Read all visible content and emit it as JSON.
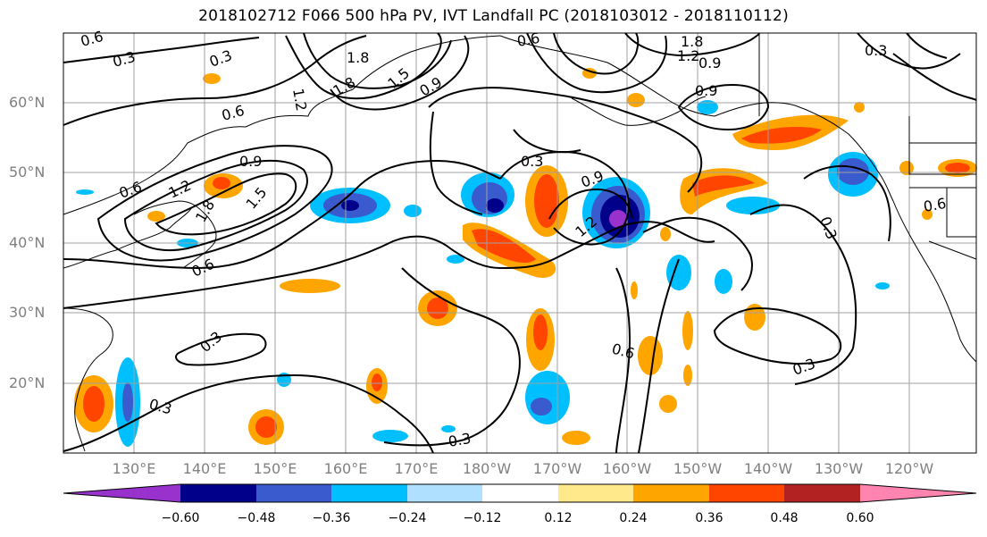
{
  "title": "2018102712 F066 500 hPa PV, IVT Landfall PC (2018103012 - 2018110112)",
  "map": {
    "lat_labels": [
      "60°N",
      "50°N",
      "40°N",
      "30°N",
      "20°N"
    ],
    "lon_labels": [
      "130°E",
      "140°E",
      "150°E",
      "160°E",
      "170°E",
      "180°W",
      "170°W",
      "160°W",
      "150°W",
      "140°W",
      "130°W",
      "120°W"
    ],
    "contour_labels": [
      "0.6",
      "0.3",
      "0.3",
      "1.8",
      "0.6",
      "1.8",
      "1.2",
      "0.9",
      "0.3",
      "1.2",
      "1.8",
      "1.5",
      "0.9",
      "0.9",
      "0.6",
      "0.9",
      "1.2",
      "1.8",
      "1.5",
      "0.6",
      "0.3",
      "0.9",
      "1.2",
      "0.6",
      "0.3",
      "0.6",
      "0.3",
      "0.6",
      "0.3",
      "0.3",
      "0.3"
    ],
    "gridlines": true
  },
  "colorbar": {
    "ticks": [
      "−0.60",
      "−0.48",
      "−0.36",
      "−0.24",
      "−0.12",
      "0.12",
      "0.24",
      "0.36",
      "0.48",
      "0.60"
    ],
    "colors": [
      "#9932cc",
      "#00008b",
      "#3a5bcd",
      "#00bfff",
      "#b0e0ff",
      "#ffffff",
      "#ffe98a",
      "#ffa500",
      "#ff4500",
      "#b22222",
      "#ff85b0"
    ]
  }
}
